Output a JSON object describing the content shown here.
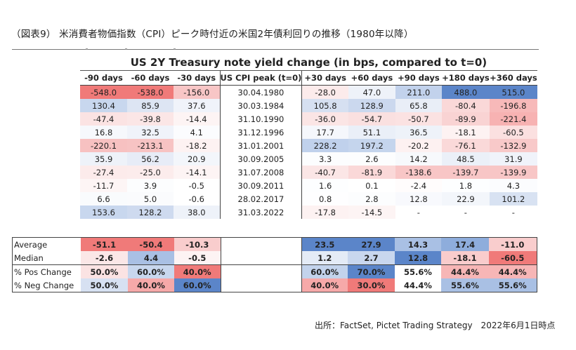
{
  "title": "（図表9） 米消費者物価指数（CPI）ピーク時付近の米国2年債利回りの推移（1980年以降）",
  "table_title": "US 2Y Treasury note yield change (in bps, compared to t=0)",
  "columns": [
    "-90 days",
    "-60 days",
    "-30 days",
    "US CPI peak (t=0)",
    "+30 days",
    "+60 days",
    "+90 days",
    "+180 days",
    "+360 days"
  ],
  "rows": [
    {
      "cells": [
        "-548.0",
        "-538.0",
        "-156.0",
        "30.04.1980",
        "-28.0",
        "47.0",
        "211.0",
        "488.0",
        "515.0"
      ],
      "colors": [
        "#f07a79",
        "#f07a79",
        "#f8c6c6",
        "#ffffff",
        "#fcebeb",
        "#eef2f9",
        "#c2d2ec",
        "#5b85c9",
        "#5b85c9"
      ]
    },
    {
      "cells": [
        "130.4",
        "85.9",
        "37.6",
        "30.03.1984",
        "105.8",
        "128.9",
        "65.8",
        "-80.4",
        "-196.8"
      ],
      "colors": [
        "#c8d7ee",
        "#dde5f3",
        "#f0f3fa",
        "#ffffff",
        "#d6e0f1",
        "#cbd8ee",
        "#e9eef7",
        "#fad8d8",
        "#f7b9b9"
      ]
    },
    {
      "cells": [
        "-47.4",
        "-39.8",
        "-14.4",
        "31.10.1990",
        "-36.0",
        "-54.7",
        "-50.7",
        "-89.9",
        "-221.4"
      ],
      "colors": [
        "#fbe3e3",
        "#fbe6e6",
        "#fdf4f4",
        "#ffffff",
        "#fbe5e5",
        "#fae0e0",
        "#fbe2e2",
        "#f9d3d3",
        "#f7b2b2"
      ]
    },
    {
      "cells": [
        "16.8",
        "32.5",
        "4.1",
        "31.12.1996",
        "17.7",
        "51.1",
        "36.5",
        "-18.1",
        "-60.5"
      ],
      "colors": [
        "#f6f8fc",
        "#f0f3fa",
        "#fbfcfe",
        "#ffffff",
        "#f5f7fc",
        "#eaeff8",
        "#eef2f9",
        "#fdf2f2",
        "#fbe0e0"
      ]
    },
    {
      "cells": [
        "-220.1",
        "-213.1",
        "-18.2",
        "31.01.2001",
        "228.2",
        "197.2",
        "-20.2",
        "-76.1",
        "-132.9"
      ],
      "colors": [
        "#f7c1c1",
        "#f7c3c3",
        "#fdf2f2",
        "#ffffff",
        "#c0d1ec",
        "#c5d5ed",
        "#fdf1f1",
        "#fad9d9",
        "#f8c9c9"
      ]
    },
    {
      "cells": [
        "35.9",
        "56.2",
        "20.9",
        "30.09.2005",
        "3.3",
        "2.6",
        "14.2",
        "48.5",
        "31.9"
      ],
      "colors": [
        "#eef2f9",
        "#e7ecf7",
        "#f3f6fb",
        "#ffffff",
        "#fcfdfe",
        "#fcfdfe",
        "#f7f9fc",
        "#ebf0f8",
        "#f0f3fa"
      ]
    },
    {
      "cells": [
        "-27.4",
        "-25.0",
        "-14.1",
        "31.07.2008",
        "-40.7",
        "-81.9",
        "-138.6",
        "-139.7",
        "-139.9"
      ],
      "colors": [
        "#fcebeb",
        "#fcecec",
        "#fdf4f4",
        "#ffffff",
        "#fbe6e6",
        "#fad8d8",
        "#f8c6c6",
        "#f8c6c6",
        "#f8c6c6"
      ]
    },
    {
      "cells": [
        "-11.7",
        "3.9",
        "-0.5",
        "30.09.2011",
        "1.6",
        "0.1",
        "-2.4",
        "1.8",
        "4.3"
      ],
      "colors": [
        "#fdf5f5",
        "#fcfdfe",
        "#ffffff",
        "#ffffff",
        "#fdfeff",
        "#ffffff",
        "#fffcfc",
        "#fdfeff",
        "#fbfcfe"
      ]
    },
    {
      "cells": [
        "6.6",
        "5.0",
        "-0.6",
        "28.02.2017",
        "0.8",
        "2.8",
        "12.8",
        "22.9",
        "101.2"
      ],
      "colors": [
        "#f9fbfd",
        "#fafbfd",
        "#ffffff",
        "#ffffff",
        "#fefeff",
        "#fcfdfe",
        "#f8f9fd",
        "#f3f6fb",
        "#d8e2f2"
      ]
    },
    {
      "cells": [
        "153.6",
        "128.2",
        "38.0",
        "31.03.2022",
        "-17.8",
        "-14.5",
        "-",
        "-",
        "-"
      ],
      "colors": [
        "#c8d7ee",
        "#cedaef",
        "#eef2f9",
        "#ffffff",
        "#fdf2f2",
        "#fdf4f4",
        "#ffffff",
        "#ffffff",
        "#ffffff"
      ]
    }
  ],
  "stats": [
    {
      "label": "Average",
      "cells": [
        "-51.1",
        "-50.4",
        "-10.3",
        "23.5",
        "27.9",
        "14.3",
        "17.4",
        "-11.0"
      ],
      "colors": [
        "#f07a79",
        "#f07a79",
        "#f9cdcd",
        "#5b85c9",
        "#5b85c9",
        "#a9c0e4",
        "#8eaddc",
        "#f9cdcd"
      ]
    },
    {
      "label": "Median",
      "cells": [
        "-2.6",
        "4.4",
        "-0.5",
        "1.2",
        "2.7",
        "12.8",
        "-18.1",
        "-60.5"
      ],
      "colors": [
        "#fbe7e7",
        "#a9c0e4",
        "#fdf3f3",
        "#e4ebf6",
        "#c9d7ee",
        "#5b85c9",
        "#f9cccc",
        "#f07a79"
      ]
    },
    {
      "label": "% Pos Change",
      "cells": [
        "50.0%",
        "60.0%",
        "40.0%",
        "60.0%",
        "70.0%",
        "55.6%",
        "44.4%",
        "44.4%"
      ],
      "colors": [
        "#fbe3e3",
        "#c8d7ee",
        "#f07a79",
        "#c3d3ec",
        "#5b85c9",
        "#ffffff",
        "#f7b6b6",
        "#f7b6b6"
      ]
    },
    {
      "label": "% Neg Change",
      "cells": [
        "50.0%",
        "40.0%",
        "60.0%",
        "40.0%",
        "30.0%",
        "44.4%",
        "55.6%",
        "55.6%"
      ],
      "colors": [
        "#d7e1f2",
        "#f6a9a9",
        "#5b85c9",
        "#f6a9a9",
        "#f07a79",
        "#ffffff",
        "#a9c0e4",
        "#a9c0e4"
      ]
    }
  ],
  "footer": "出所：FactSet, Pictet Trading Strategy　2022年6月1日時点"
}
